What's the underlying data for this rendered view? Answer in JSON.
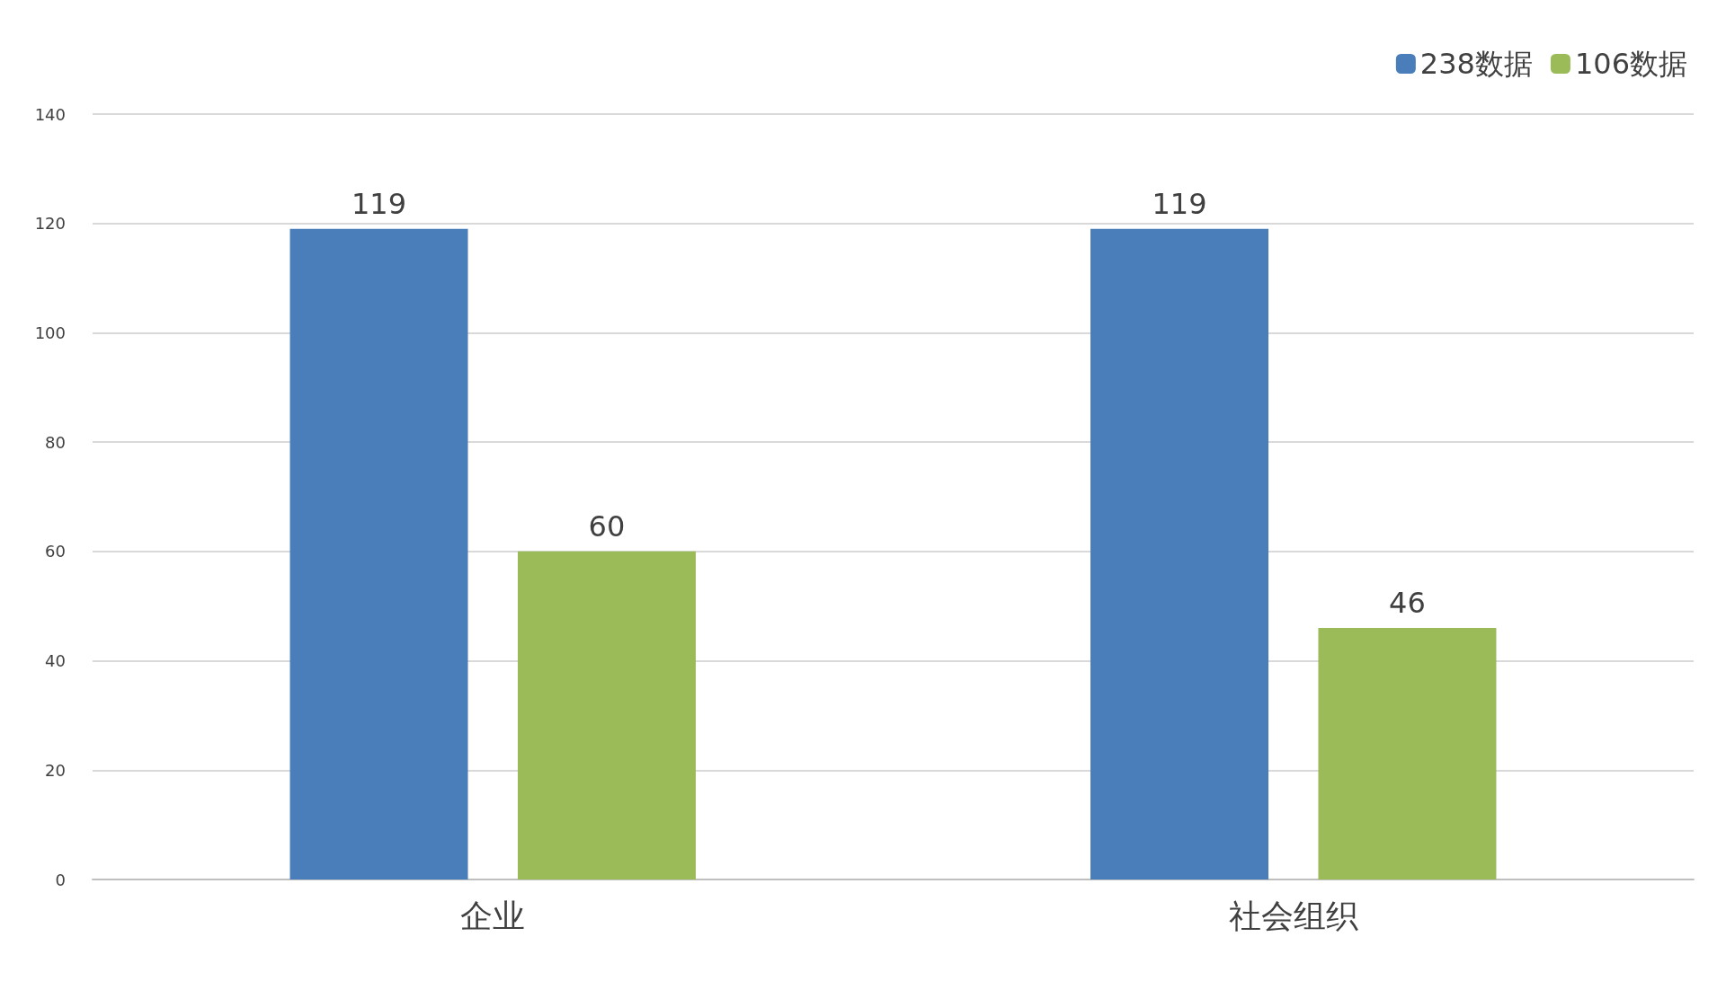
{
  "chart_data": {
    "type": "bar",
    "categories": [
      "企业",
      "社会组织"
    ],
    "series": [
      {
        "name": "238数据",
        "color": "#4a7ebb",
        "values": [
          119,
          119
        ]
      },
      {
        "name": "106数据",
        "color": "#9bbb59",
        "values": [
          60,
          46
        ]
      }
    ],
    "ylim": [
      0,
      140
    ],
    "yticks": [
      0,
      20,
      40,
      60,
      80,
      100,
      120,
      140
    ],
    "grid": "y",
    "legend": "top right",
    "data_labels": true
  }
}
